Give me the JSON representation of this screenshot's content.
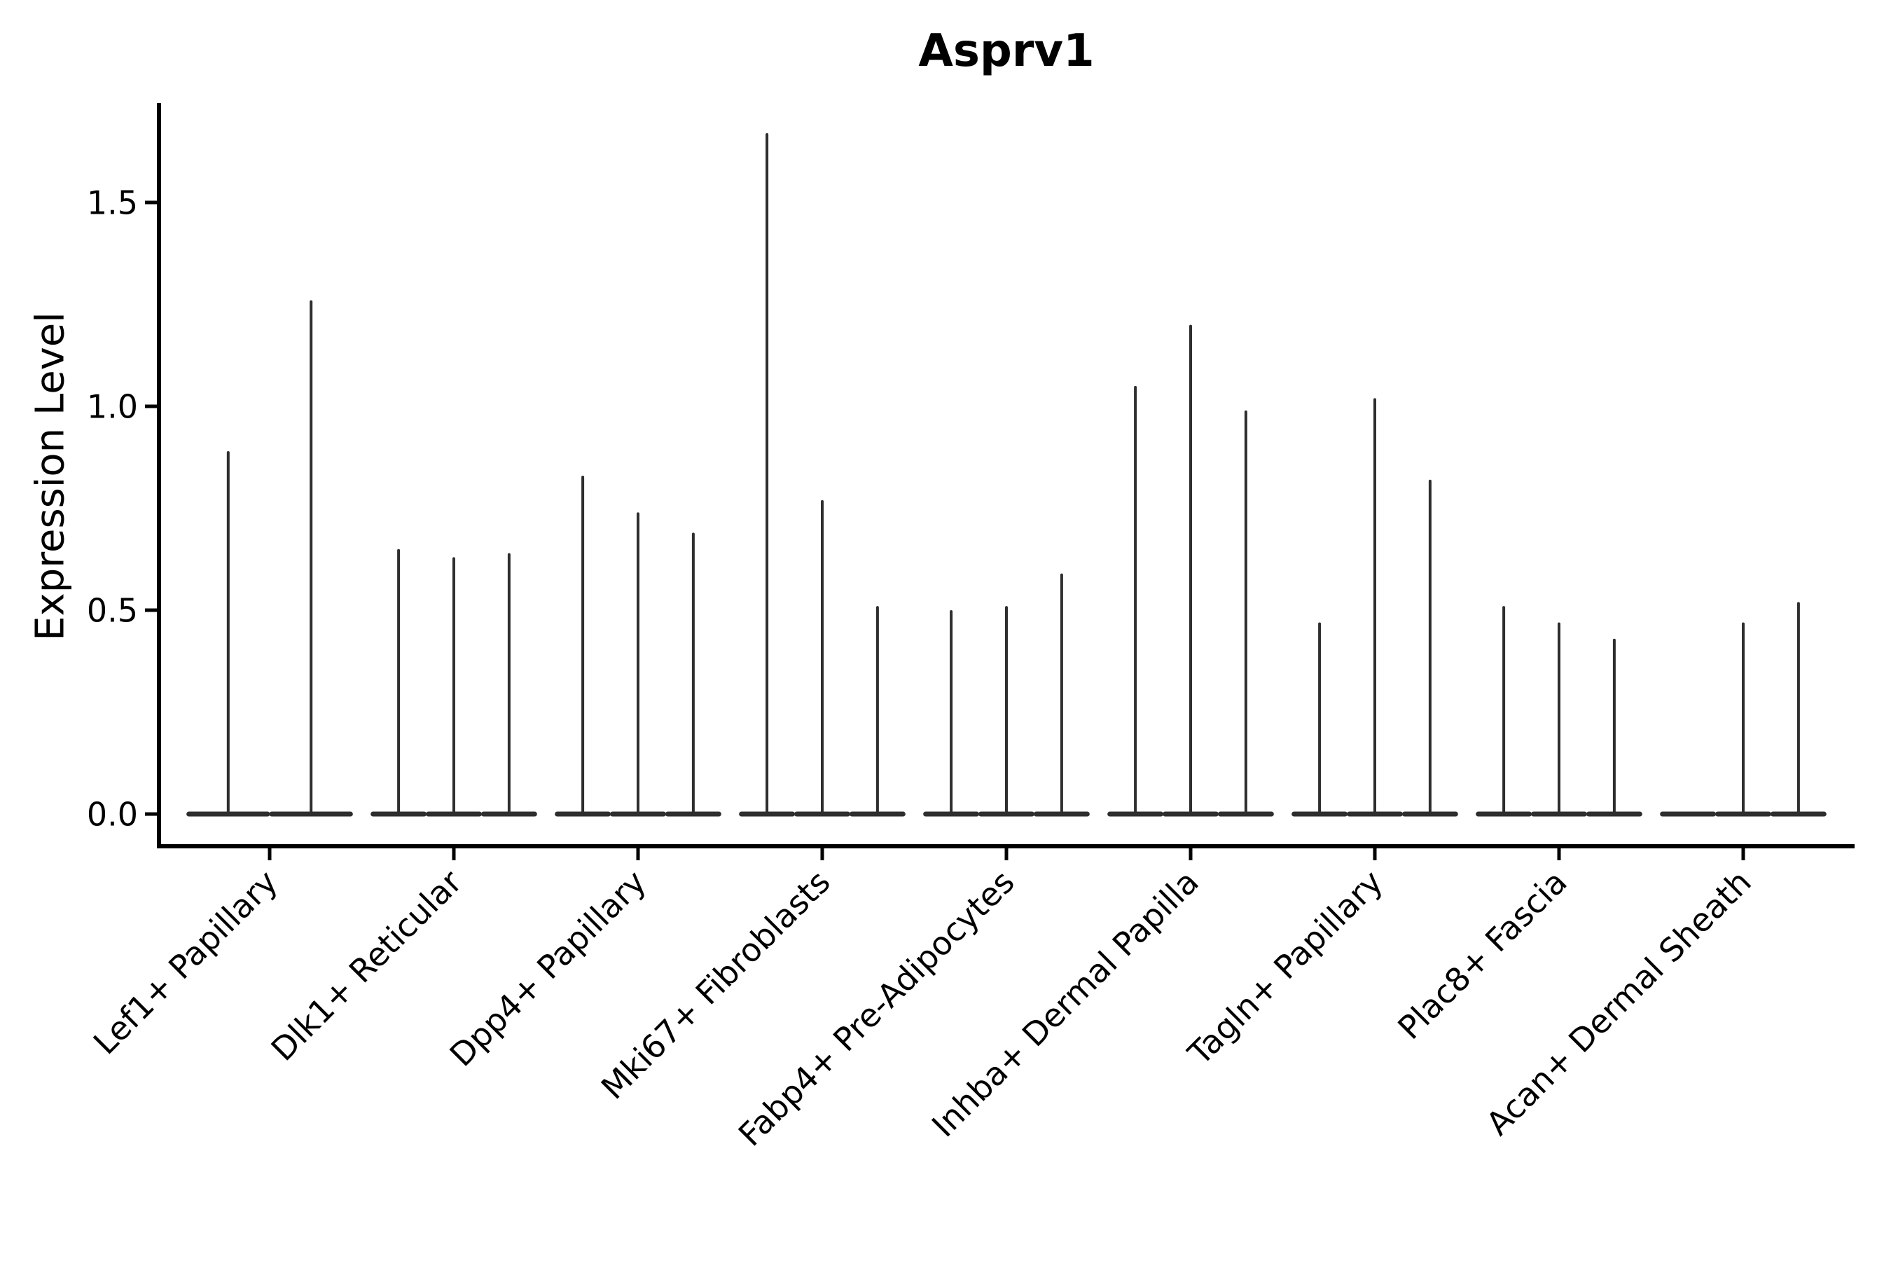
{
  "title": "Asprv1",
  "y_axis": {
    "label": "Expression Level",
    "tick_labels": [
      "0.0",
      "0.5",
      "1.0",
      "1.5"
    ]
  },
  "chart_data": {
    "type": "violin",
    "title": "Asprv1",
    "xlabel": "",
    "ylabel": "Expression Level",
    "categories": [
      "Lef1+ Papillary",
      "Dlk1+ Reticular",
      "Dpp4+ Papillary",
      "Mki67+ Fibroblasts",
      "Fabp4+ Pre-Adipocytes",
      "Inhba+ Dermal Papilla",
      "Tagln+ Papillary",
      "Plac8+ Fascia",
      "Acan+ Dermal Sheath"
    ],
    "series": [
      {
        "category": "Lef1+ Papillary",
        "violin_peak_values": [
          0.89,
          1.26
        ]
      },
      {
        "category": "Dlk1+ Reticular",
        "violin_peak_values": [
          0.65,
          0.63,
          0.64
        ]
      },
      {
        "category": "Dpp4+ Papillary",
        "violin_peak_values": [
          0.83,
          0.74,
          0.69
        ]
      },
      {
        "category": "Mki67+ Fibroblasts",
        "violin_peak_values": [
          1.67,
          0.77,
          0.51
        ]
      },
      {
        "category": "Fabp4+ Pre-Adipocytes",
        "violin_peak_values": [
          0.5,
          0.51,
          0.59
        ]
      },
      {
        "category": "Inhba+ Dermal Papilla",
        "violin_peak_values": [
          1.05,
          1.2,
          0.99
        ]
      },
      {
        "category": "Tagln+ Papillary",
        "violin_peak_values": [
          0.47,
          1.02,
          0.82
        ]
      },
      {
        "category": "Plac8+ Fascia",
        "violin_peak_values": [
          0.51,
          0.47,
          0.43
        ]
      },
      {
        "category": "Acan+ Dermal Sheath",
        "violin_peak_values": [
          0.0,
          0.47,
          0.52
        ]
      }
    ],
    "y_ticks": [
      0.0,
      0.5,
      1.0,
      1.5
    ],
    "ylim": [
      -0.08,
      1.74
    ],
    "x_tick_rotation": 45,
    "grid": false,
    "legend": "none",
    "violin_color": "#2e2e2e",
    "axis_color": "#000000"
  }
}
